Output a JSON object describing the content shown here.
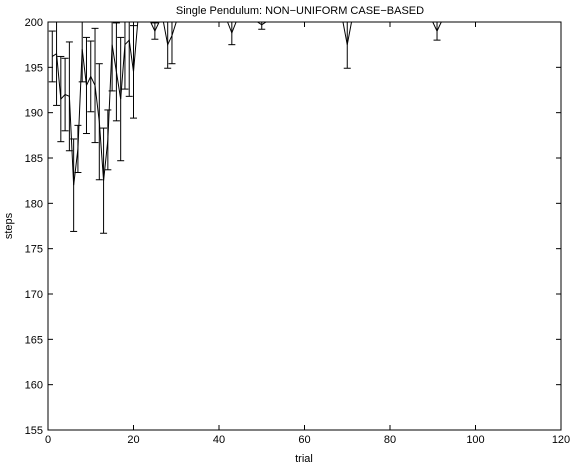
{
  "chart_data": {
    "type": "line",
    "title": "Single Pendulum: NON−UNIFORM CASE−BASED",
    "xlabel": "trial",
    "ylabel": "steps",
    "xlim": [
      0,
      120
    ],
    "ylim": [
      155,
      200
    ],
    "xticks": [
      "0",
      "20",
      "40",
      "60",
      "80",
      "100",
      "120"
    ],
    "yticks": [
      "155",
      "160",
      "165",
      "170",
      "175",
      "180",
      "185",
      "190",
      "195",
      "200"
    ],
    "grid": false,
    "legend": "none",
    "series": [
      {
        "x": [
          1,
          2,
          3,
          4,
          5,
          6,
          7,
          8,
          9,
          10,
          11,
          12,
          13,
          14,
          15,
          16,
          17,
          18,
          19,
          20,
          21,
          22,
          23,
          24,
          25,
          26,
          27,
          28,
          29,
          30,
          31,
          32,
          33,
          34,
          35,
          36,
          37,
          38,
          39,
          40,
          41,
          42,
          43,
          44,
          45,
          46,
          47,
          48,
          49,
          50,
          51,
          52,
          53,
          54,
          55,
          56,
          57,
          58,
          59,
          60,
          61,
          62,
          63,
          64,
          65,
          66,
          67,
          68,
          69,
          70,
          71,
          72,
          73,
          74,
          75,
          76,
          77,
          78,
          79,
          80,
          81,
          82,
          83,
          84,
          85,
          86,
          87,
          88,
          89,
          90,
          91,
          92,
          93,
          94,
          95,
          96,
          97,
          98,
          99,
          100
        ],
        "y": [
          196.2,
          196.5,
          191.5,
          192.0,
          191.8,
          182.0,
          186.0,
          197.0,
          193.0,
          194.0,
          193.0,
          189.0,
          182.5,
          187.0,
          197.5,
          194.5,
          191.5,
          197.5,
          198.0,
          194.5,
          200,
          200,
          200,
          200,
          199.0,
          200,
          200,
          197.5,
          198.5,
          200,
          200,
          200,
          200,
          200,
          200,
          200,
          200,
          200,
          200,
          200,
          200,
          200,
          198.8,
          200,
          200,
          200,
          200,
          200,
          200,
          199.7,
          200,
          200,
          200,
          200,
          200,
          200,
          200,
          200,
          200,
          200,
          200,
          200,
          200,
          200,
          200,
          200,
          200,
          200,
          200,
          197.5,
          200,
          200,
          200,
          200,
          200,
          200,
          200,
          200,
          200,
          200,
          200,
          200,
          200,
          200,
          200,
          200,
          200,
          200,
          200,
          200,
          199.0,
          200,
          200,
          200,
          200,
          200,
          200,
          200,
          200,
          200
        ],
        "err": [
          2.8,
          5.7,
          4.7,
          4.0,
          6.0,
          5.1,
          2.6,
          3.6,
          5.3,
          3.9,
          6.3,
          6.4,
          5.8,
          3.3,
          5.1,
          5.4,
          6.8,
          4.9,
          6.2,
          5.1,
          0,
          0,
          0,
          0,
          0.9,
          0,
          0,
          2.6,
          3.1,
          0,
          0,
          0,
          0,
          0,
          0,
          0,
          0,
          0,
          0,
          0,
          0,
          0,
          1.3,
          0,
          0,
          0,
          0,
          0,
          0,
          0.5,
          0,
          0,
          0,
          0,
          0,
          0,
          0,
          0,
          0,
          0,
          0,
          0,
          0,
          0,
          0,
          0,
          0,
          0,
          0,
          2.6,
          0,
          0,
          0,
          0,
          0,
          0,
          0,
          0,
          0,
          0,
          0,
          0,
          0,
          0,
          0,
          0,
          0,
          0,
          0,
          0,
          1.0,
          0,
          0,
          0,
          0,
          0,
          0,
          0,
          0,
          0
        ],
        "color": "#000000"
      }
    ]
  }
}
